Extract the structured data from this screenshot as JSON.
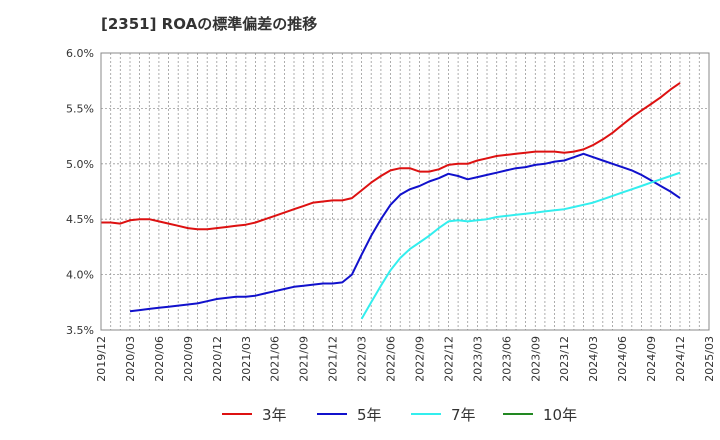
{
  "chart_data": {
    "type": "line",
    "title": "[2351]  ROAの標準偏差の推移",
    "xlabel": "",
    "ylabel": "",
    "ylim": [
      3.5,
      6.0
    ],
    "y_ticks": [
      "3.5%",
      "4.0%",
      "4.5%",
      "5.0%",
      "5.5%",
      "6.0%"
    ],
    "x_ticks": [
      "2019/12",
      "2020/03",
      "2020/06",
      "2020/09",
      "2020/12",
      "2021/03",
      "2021/06",
      "2021/09",
      "2021/12",
      "2022/03",
      "2022/06",
      "2022/09",
      "2022/12",
      "2023/03",
      "2023/06",
      "2023/09",
      "2023/12",
      "2024/03",
      "2024/06",
      "2024/09",
      "2024/12",
      "2025/03"
    ],
    "grid": true,
    "legend_position": "bottom",
    "series": [
      {
        "name": "3年",
        "color": "#dd1111",
        "points": [
          [
            0,
            4.47
          ],
          [
            1,
            4.47
          ],
          [
            2,
            4.46
          ],
          [
            3,
            4.49
          ],
          [
            4,
            4.5
          ],
          [
            5,
            4.5
          ],
          [
            6,
            4.48
          ],
          [
            7,
            4.46
          ],
          [
            8,
            4.44
          ],
          [
            9,
            4.42
          ],
          [
            10,
            4.41
          ],
          [
            11,
            4.41
          ],
          [
            12,
            4.42
          ],
          [
            13,
            4.43
          ],
          [
            14,
            4.44
          ],
          [
            15,
            4.45
          ],
          [
            16,
            4.47
          ],
          [
            17,
            4.5
          ],
          [
            18,
            4.53
          ],
          [
            19,
            4.56
          ],
          [
            20,
            4.59
          ],
          [
            21,
            4.62
          ],
          [
            22,
            4.65
          ],
          [
            23,
            4.66
          ],
          [
            24,
            4.67
          ],
          [
            25,
            4.67
          ],
          [
            26,
            4.69
          ],
          [
            27,
            4.76
          ],
          [
            28,
            4.83
          ],
          [
            29,
            4.89
          ],
          [
            30,
            4.94
          ],
          [
            31,
            4.96
          ],
          [
            32,
            4.96
          ],
          [
            33,
            4.93
          ],
          [
            34,
            4.93
          ],
          [
            35,
            4.95
          ],
          [
            36,
            4.99
          ],
          [
            37,
            5.0
          ],
          [
            38,
            5.0
          ],
          [
            39,
            5.03
          ],
          [
            40,
            5.05
          ],
          [
            41,
            5.07
          ],
          [
            42,
            5.08
          ],
          [
            43,
            5.09
          ],
          [
            44,
            5.1
          ],
          [
            45,
            5.11
          ],
          [
            46,
            5.11
          ],
          [
            47,
            5.11
          ],
          [
            48,
            5.1
          ],
          [
            49,
            5.11
          ],
          [
            50,
            5.13
          ],
          [
            51,
            5.17
          ],
          [
            52,
            5.22
          ],
          [
            53,
            5.28
          ],
          [
            54,
            5.35
          ],
          [
            55,
            5.42
          ],
          [
            56,
            5.48
          ],
          [
            57,
            5.54
          ],
          [
            58,
            5.6
          ],
          [
            59,
            5.67
          ],
          [
            60,
            5.73
          ]
        ]
      },
      {
        "name": "5年",
        "color": "#1111cc",
        "points": [
          [
            3,
            3.67
          ],
          [
            4,
            3.68
          ],
          [
            5,
            3.69
          ],
          [
            6,
            3.7
          ],
          [
            7,
            3.71
          ],
          [
            8,
            3.72
          ],
          [
            9,
            3.73
          ],
          [
            10,
            3.74
          ],
          [
            11,
            3.76
          ],
          [
            12,
            3.78
          ],
          [
            13,
            3.79
          ],
          [
            14,
            3.8
          ],
          [
            15,
            3.8
          ],
          [
            16,
            3.81
          ],
          [
            17,
            3.83
          ],
          [
            18,
            3.85
          ],
          [
            19,
            3.87
          ],
          [
            20,
            3.89
          ],
          [
            21,
            3.9
          ],
          [
            22,
            3.91
          ],
          [
            23,
            3.92
          ],
          [
            24,
            3.92
          ],
          [
            25,
            3.93
          ],
          [
            26,
            4.0
          ],
          [
            27,
            4.18
          ],
          [
            28,
            4.35
          ],
          [
            29,
            4.5
          ],
          [
            30,
            4.63
          ],
          [
            31,
            4.72
          ],
          [
            32,
            4.77
          ],
          [
            33,
            4.8
          ],
          [
            34,
            4.84
          ],
          [
            35,
            4.87
          ],
          [
            36,
            4.91
          ],
          [
            37,
            4.89
          ],
          [
            38,
            4.86
          ],
          [
            39,
            4.88
          ],
          [
            40,
            4.9
          ],
          [
            41,
            4.92
          ],
          [
            42,
            4.94
          ],
          [
            43,
            4.96
          ],
          [
            44,
            4.97
          ],
          [
            45,
            4.99
          ],
          [
            46,
            5.0
          ],
          [
            47,
            5.02
          ],
          [
            48,
            5.03
          ],
          [
            49,
            5.06
          ],
          [
            50,
            5.09
          ],
          [
            51,
            5.06
          ],
          [
            52,
            5.03
          ],
          [
            53,
            5.0
          ],
          [
            54,
            4.97
          ],
          [
            55,
            4.94
          ],
          [
            56,
            4.9
          ],
          [
            57,
            4.85
          ],
          [
            58,
            4.8
          ],
          [
            59,
            4.75
          ],
          [
            60,
            4.69
          ]
        ]
      },
      {
        "name": "7年",
        "color": "#33eeee",
        "points": [
          [
            27,
            3.6
          ],
          [
            28,
            3.75
          ],
          [
            29,
            3.9
          ],
          [
            30,
            4.04
          ],
          [
            31,
            4.15
          ],
          [
            32,
            4.23
          ],
          [
            33,
            4.29
          ],
          [
            34,
            4.35
          ],
          [
            35,
            4.42
          ],
          [
            36,
            4.48
          ],
          [
            37,
            4.49
          ],
          [
            38,
            4.48
          ],
          [
            39,
            4.49
          ],
          [
            40,
            4.5
          ],
          [
            41,
            4.52
          ],
          [
            42,
            4.53
          ],
          [
            43,
            4.54
          ],
          [
            44,
            4.55
          ],
          [
            45,
            4.56
          ],
          [
            46,
            4.57
          ],
          [
            47,
            4.58
          ],
          [
            48,
            4.59
          ],
          [
            49,
            4.61
          ],
          [
            50,
            4.63
          ],
          [
            51,
            4.65
          ],
          [
            52,
            4.68
          ],
          [
            53,
            4.71
          ],
          [
            54,
            4.74
          ],
          [
            55,
            4.77
          ],
          [
            56,
            4.8
          ],
          [
            57,
            4.83
          ],
          [
            58,
            4.86
          ],
          [
            59,
            4.89
          ],
          [
            60,
            4.92
          ]
        ]
      },
      {
        "name": "10年",
        "color": "#228822",
        "points": []
      }
    ]
  }
}
